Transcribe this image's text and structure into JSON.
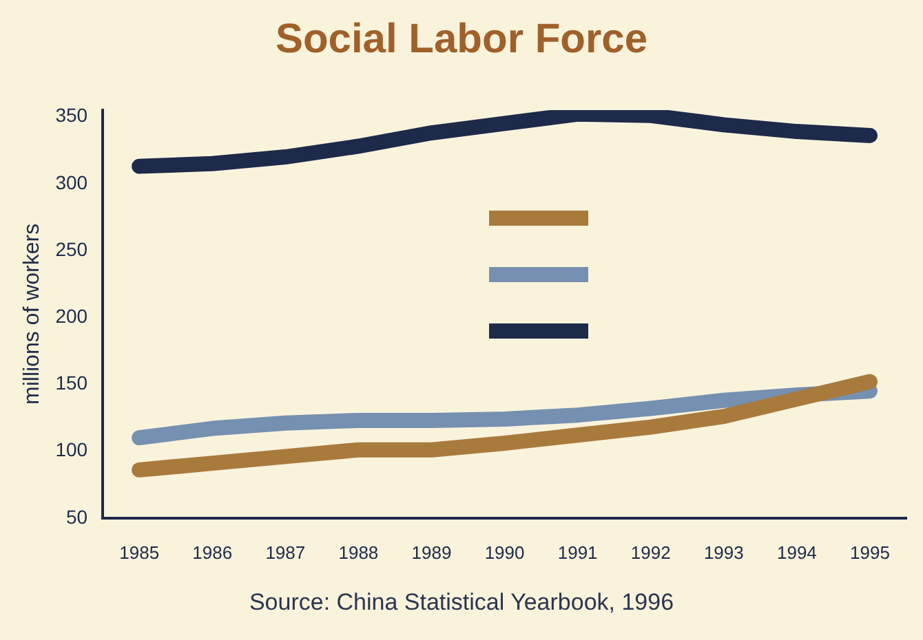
{
  "chart_data": {
    "type": "line",
    "title": "Social Labor Force",
    "ylabel": "millions of workers",
    "categories": [
      "1985",
      "1986",
      "1987",
      "1988",
      "1989",
      "1990",
      "1991",
      "1992",
      "1993",
      "1994",
      "1995"
    ],
    "series": [
      {
        "color": "#a87a3c",
        "values": [
          86,
          91,
          96,
          101,
          101,
          106,
          112,
          118,
          126,
          139,
          152
        ]
      },
      {
        "color": "#7590b0",
        "values": [
          110,
          117,
          121,
          123,
          123,
          124,
          127,
          132,
          138,
          142,
          145
        ]
      },
      {
        "color": "#1d2a4a",
        "values": [
          313,
          315,
          320,
          328,
          338,
          345,
          352,
          351,
          344,
          339,
          336
        ]
      }
    ],
    "ylim": [
      50,
      355
    ],
    "yticks": [
      50,
      100,
      150,
      200,
      250,
      300,
      350
    ],
    "grid": false,
    "marker": "none",
    "line_style": "solid",
    "annotations": [
      "Source: China Statistical Yearbook, 1996"
    ]
  }
}
